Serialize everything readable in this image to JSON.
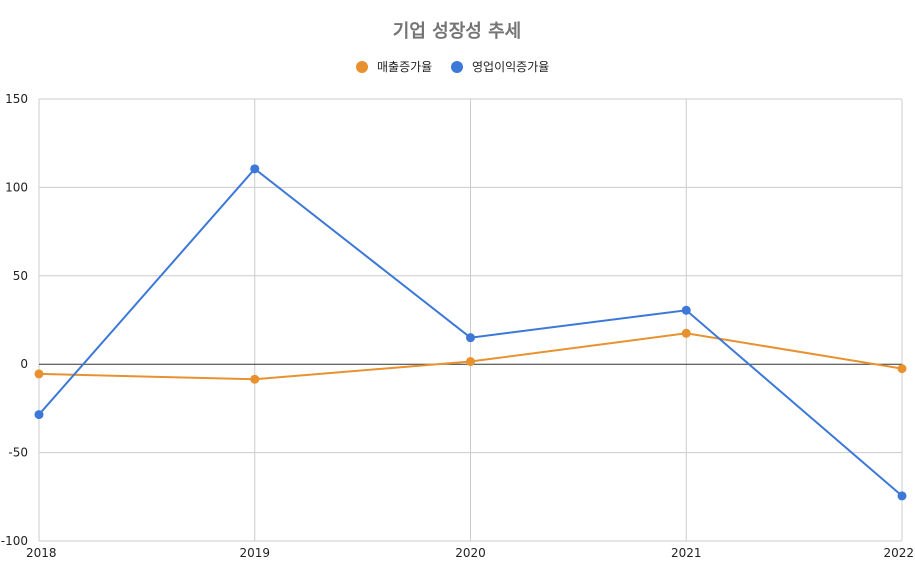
{
  "chart_data": {
    "type": "line",
    "title": "기업 성장성 추세",
    "x": [
      "2018",
      "2019",
      "2020",
      "2021",
      "2022"
    ],
    "series": [
      {
        "name": "매출증가율",
        "color": "#e8912f",
        "values": [
          -5.5,
          -8.5,
          1.5,
          17.5,
          -2.5
        ]
      },
      {
        "name": "영업이익증가율",
        "color": "#3c78d8",
        "values": [
          -28.5,
          110.5,
          15,
          30.5,
          -74.5
        ]
      }
    ],
    "y_ticks": [
      150,
      100,
      50,
      0,
      -50,
      -100
    ],
    "ylim": [
      -100,
      150
    ],
    "grid": true,
    "legend_position": "top"
  }
}
